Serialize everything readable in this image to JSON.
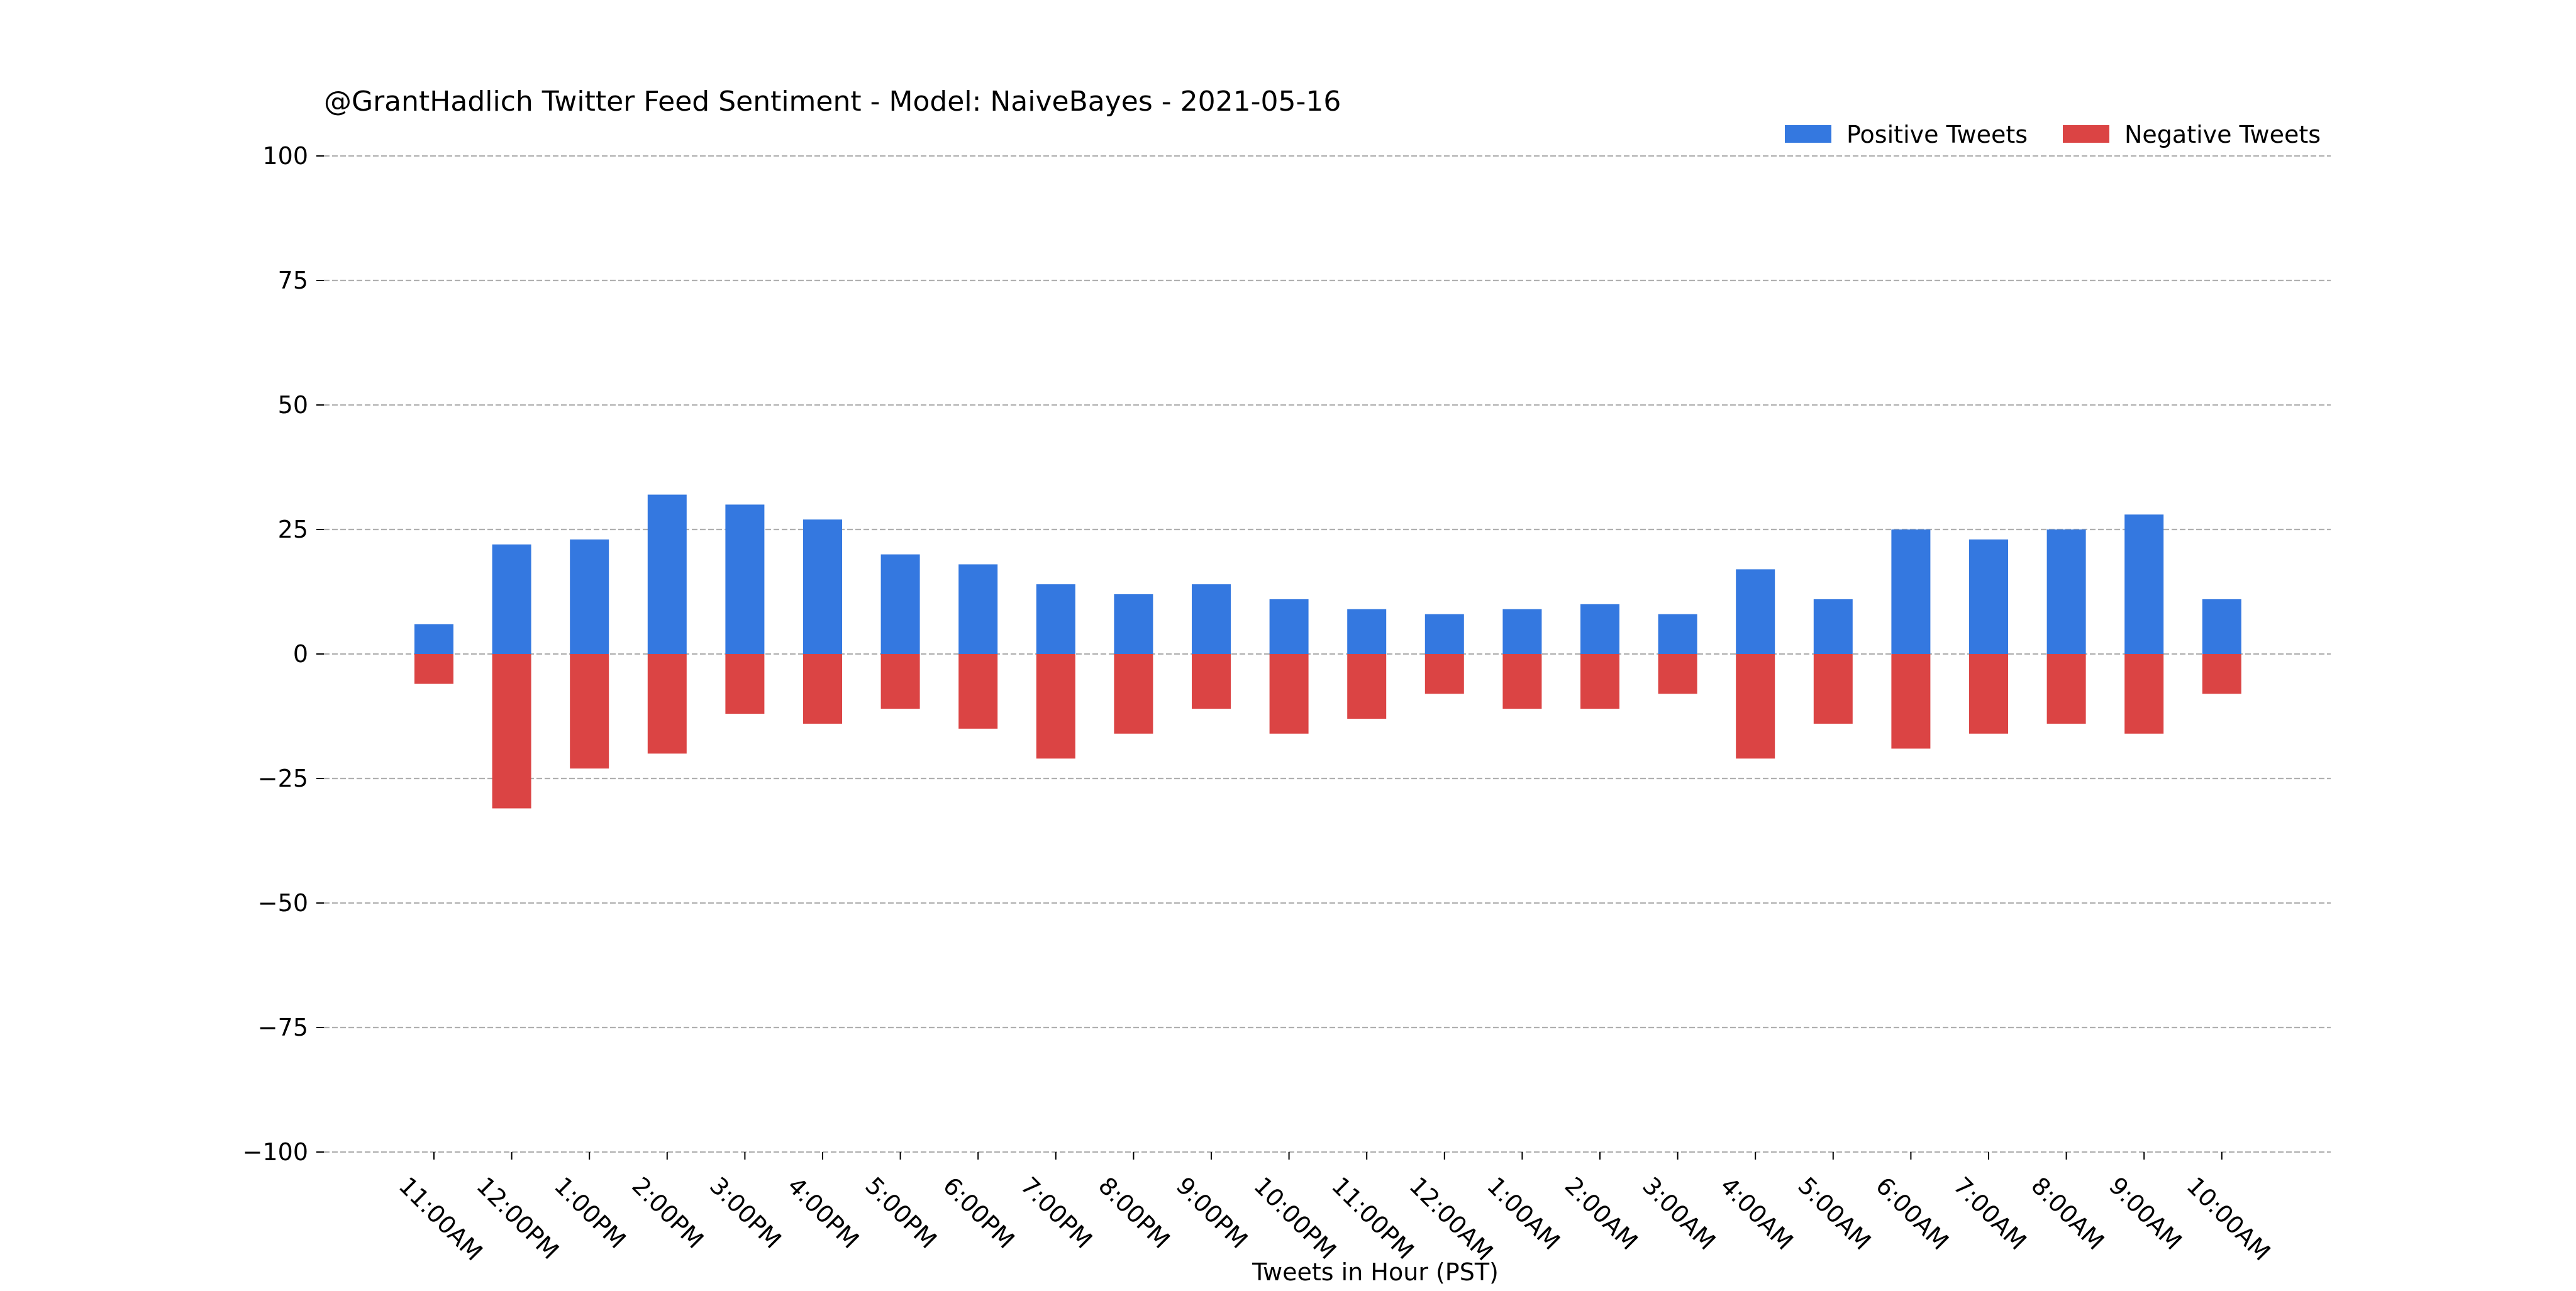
{
  "chart_data": {
    "type": "bar",
    "title": "@GrantHadlich Twitter Feed Sentiment - Model: NaiveBayes - 2021-05-16",
    "xlabel": "Tweets in Hour (PST)",
    "ylabel": "",
    "ylim": [
      -100,
      100
    ],
    "yticks": [
      100,
      75,
      50,
      25,
      0,
      -25,
      -50,
      -75,
      -100
    ],
    "ytick_labels": [
      "100",
      "75",
      "50",
      "25",
      "0",
      "−25",
      "−50",
      "−75",
      "−100"
    ],
    "grid": true,
    "legend_position": "top-right",
    "categories": [
      "11:00AM",
      "12:00PM",
      "1:00PM",
      "2:00PM",
      "3:00PM",
      "4:00PM",
      "5:00PM",
      "6:00PM",
      "7:00PM",
      "8:00PM",
      "9:00PM",
      "10:00PM",
      "11:00PM",
      "12:00AM",
      "1:00AM",
      "2:00AM",
      "3:00AM",
      "4:00AM",
      "5:00AM",
      "6:00AM",
      "7:00AM",
      "8:00AM",
      "9:00AM",
      "10:00AM"
    ],
    "series": [
      {
        "name": "Positive Tweets",
        "color": "#3478e0",
        "values": [
          6,
          22,
          23,
          32,
          30,
          27,
          20,
          18,
          14,
          12,
          14,
          11,
          9,
          8,
          9,
          10,
          8,
          17,
          11,
          25,
          23,
          25,
          28,
          11
        ]
      },
      {
        "name": "Negative Tweets",
        "color": "#db4444",
        "values": [
          -6,
          -31,
          -23,
          -20,
          -12,
          -14,
          -11,
          -15,
          -21,
          -16,
          -11,
          -16,
          -13,
          -8,
          -11,
          -11,
          -8,
          -21,
          -14,
          -19,
          -16,
          -14,
          -16,
          -8
        ]
      }
    ]
  }
}
